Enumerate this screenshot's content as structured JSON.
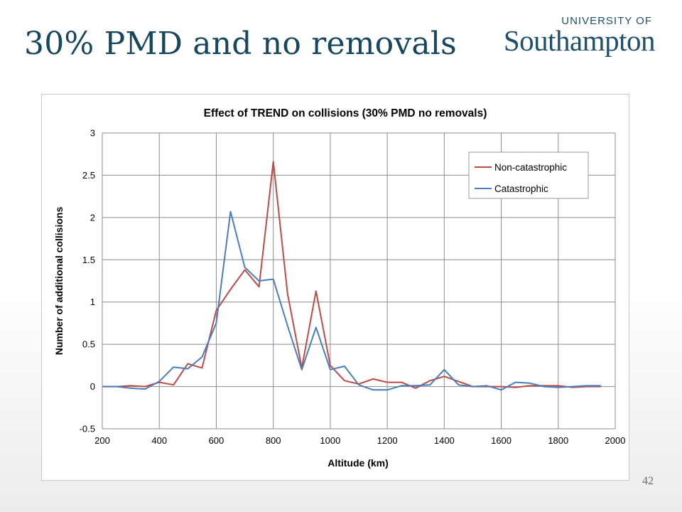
{
  "slide": {
    "title": "30% PMD and no removals",
    "page_number": "42"
  },
  "logo": {
    "line1": "UNIVERSITY OF",
    "line2": "Southampton",
    "color": "#1f4f6b"
  },
  "chart_data": {
    "type": "line",
    "title": "Effect of TREND on collisions (30% PMD no removals)",
    "xlabel": "Altitude (km)",
    "ylabel": "Number of additional collisions",
    "xlim": [
      200,
      2000
    ],
    "ylim": [
      -0.5,
      3
    ],
    "xticks": [
      200,
      400,
      600,
      800,
      1000,
      1200,
      1400,
      1600,
      1800,
      2000
    ],
    "yticks": [
      -0.5,
      0,
      0.5,
      1,
      1.5,
      2,
      2.5,
      3
    ],
    "x_grid": true,
    "y_grid": true,
    "legend_position": "top-right",
    "x": [
      200,
      250,
      300,
      350,
      400,
      450,
      500,
      550,
      600,
      650,
      700,
      750,
      800,
      850,
      900,
      950,
      1000,
      1050,
      1100,
      1150,
      1200,
      1250,
      1300,
      1350,
      1400,
      1450,
      1500,
      1550,
      1600,
      1650,
      1700,
      1750,
      1800,
      1850,
      1900,
      1950
    ],
    "series": [
      {
        "name": "Non-catastrophic",
        "color": "#be4b48",
        "values": [
          0,
          0,
          0.01,
          0,
          0.05,
          0.02,
          0.27,
          0.22,
          0.9,
          1.15,
          1.38,
          1.18,
          2.66,
          1.1,
          0.22,
          1.13,
          0.25,
          0.07,
          0.03,
          0.09,
          0.05,
          0.05,
          -0.02,
          0.07,
          0.12,
          0.06,
          0,
          0,
          0,
          -0.01,
          0.01,
          0.01,
          0.01,
          -0.01,
          0,
          0
        ]
      },
      {
        "name": "Catastrophic",
        "color": "#4a7ebb",
        "values": [
          0,
          0,
          -0.02,
          -0.03,
          0.06,
          0.23,
          0.21,
          0.35,
          0.75,
          2.07,
          1.41,
          1.25,
          1.27,
          0.72,
          0.2,
          0.7,
          0.2,
          0.24,
          0.02,
          -0.04,
          -0.04,
          0.01,
          0.01,
          0.02,
          0.2,
          0.02,
          0,
          0.01,
          -0.04,
          0.05,
          0.04,
          0,
          -0.01,
          0,
          0.01,
          0.01
        ]
      }
    ]
  }
}
